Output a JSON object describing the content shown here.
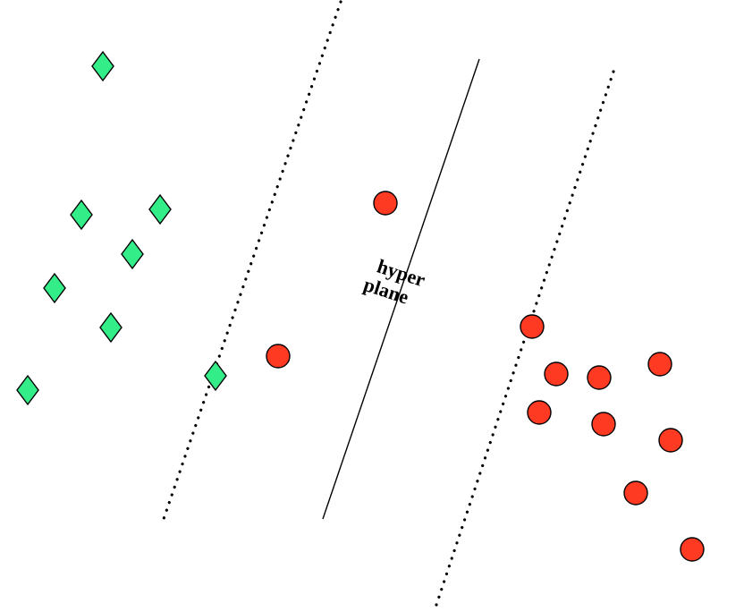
{
  "diagram": {
    "label_line1": "hyper",
    "label_line2": "plane",
    "colors": {
      "diamond_fill": "#33ee88",
      "circle_fill": "#ff3a22",
      "stroke": "#000000",
      "background": "#ffffff"
    },
    "shapes": {
      "class_a": "green-diamond",
      "class_b": "red-circle"
    }
  }
}
